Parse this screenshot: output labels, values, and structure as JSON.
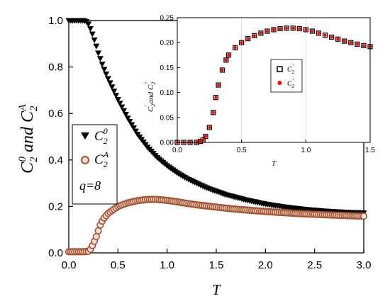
{
  "chart_data": [
    {
      "type": "scatter",
      "xlabel": "T",
      "ylabel": "C_2^0 and C_2^A",
      "xlim": [
        0,
        3.0
      ],
      "ylim": [
        0,
        1.0
      ],
      "xticks": [
        "0.0",
        "0.5",
        "1.0",
        "1.5",
        "2.0",
        "2.5",
        "3.0"
      ],
      "yticks": [
        "0.0",
        "0.2",
        "0.4",
        "0.6",
        "0.8",
        "1.0"
      ],
      "legend_position": "left",
      "annotation": "q=8",
      "series": [
        {
          "name": "C_2^0",
          "marker": "triangle-down",
          "color": "#000000",
          "x": [
            0.02,
            0.1,
            0.15,
            0.18,
            0.2,
            0.22,
            0.25,
            0.28,
            0.3,
            0.35,
            0.4,
            0.5,
            0.6,
            0.7,
            0.8,
            0.9,
            1.0,
            1.1,
            1.2,
            1.3,
            1.4,
            1.5,
            1.6,
            1.8,
            2.0,
            2.2,
            2.4,
            2.6,
            2.8,
            3.0
          ],
          "y": [
            1.0,
            1.0,
            1.0,
            0.995,
            0.985,
            0.965,
            0.93,
            0.89,
            0.86,
            0.8,
            0.75,
            0.66,
            0.58,
            0.51,
            0.455,
            0.41,
            0.375,
            0.345,
            0.32,
            0.3,
            0.28,
            0.265,
            0.25,
            0.228,
            0.21,
            0.197,
            0.187,
            0.18,
            0.175,
            0.172
          ]
        },
        {
          "name": "C_2^A",
          "marker": "circle-open",
          "color": "#a0522d",
          "fill": "#ff2020",
          "x": [
            0.02,
            0.1,
            0.15,
            0.2,
            0.22,
            0.25,
            0.28,
            0.3,
            0.32,
            0.35,
            0.4,
            0.45,
            0.5,
            0.6,
            0.7,
            0.8,
            0.9,
            1.0,
            1.1,
            1.2,
            1.3,
            1.5,
            1.7,
            2.0,
            2.3,
            2.6,
            3.0
          ],
          "y": [
            0.005,
            0.005,
            0.005,
            0.007,
            0.015,
            0.04,
            0.07,
            0.095,
            0.12,
            0.145,
            0.17,
            0.185,
            0.2,
            0.215,
            0.225,
            0.23,
            0.23,
            0.226,
            0.22,
            0.213,
            0.207,
            0.197,
            0.188,
            0.178,
            0.17,
            0.164,
            0.158
          ]
        }
      ]
    },
    {
      "type": "scatter",
      "inset": true,
      "xlabel": "T",
      "ylabel": "C'_2 and C''_2",
      "xlim": [
        0,
        1.5
      ],
      "ylim": [
        0,
        0.25
      ],
      "xticks": [
        "0.0",
        "0.5",
        "1.0",
        "1.5"
      ],
      "yticks": [
        "0.00",
        "0.05",
        "0.10",
        "0.15",
        "0.20",
        "0.25"
      ],
      "legend_position": "right",
      "series": [
        {
          "name": "C'_2",
          "marker": "square-open",
          "color": "#000000",
          "x": [
            0.0,
            0.05,
            0.1,
            0.15,
            0.18,
            0.2,
            0.22,
            0.25,
            0.28,
            0.3,
            0.32,
            0.35,
            0.38,
            0.4,
            0.45,
            0.5,
            0.55,
            0.6,
            0.65,
            0.7,
            0.75,
            0.8,
            0.85,
            0.9,
            0.95,
            1.0,
            1.05,
            1.1,
            1.15,
            1.2,
            1.25,
            1.3,
            1.35,
            1.4,
            1.45,
            1.5
          ],
          "y": [
            0.0,
            0.0,
            0.0,
            0.0,
            0.002,
            0.005,
            0.012,
            0.03,
            0.06,
            0.09,
            0.115,
            0.145,
            0.165,
            0.175,
            0.19,
            0.2,
            0.208,
            0.214,
            0.219,
            0.223,
            0.226,
            0.228,
            0.229,
            0.229,
            0.228,
            0.226,
            0.223,
            0.219,
            0.215,
            0.211,
            0.207,
            0.203,
            0.2,
            0.197,
            0.194,
            0.192
          ]
        },
        {
          "name": "C''_2",
          "marker": "circle-filled",
          "color": "#ff0000",
          "x": [
            0.0,
            0.05,
            0.1,
            0.15,
            0.18,
            0.2,
            0.22,
            0.25,
            0.28,
            0.3,
            0.32,
            0.35,
            0.38,
            0.4,
            0.45,
            0.5,
            0.55,
            0.6,
            0.65,
            0.7,
            0.75,
            0.8,
            0.85,
            0.9,
            0.95,
            1.0,
            1.05,
            1.1,
            1.15,
            1.2,
            1.25,
            1.3,
            1.35,
            1.4,
            1.45,
            1.5
          ],
          "y": [
            0.0,
            0.0,
            0.0,
            0.0,
            0.002,
            0.005,
            0.012,
            0.03,
            0.06,
            0.09,
            0.115,
            0.145,
            0.165,
            0.175,
            0.19,
            0.2,
            0.208,
            0.214,
            0.219,
            0.223,
            0.226,
            0.228,
            0.229,
            0.229,
            0.228,
            0.226,
            0.223,
            0.219,
            0.215,
            0.211,
            0.207,
            0.203,
            0.2,
            0.197,
            0.194,
            0.192
          ]
        }
      ]
    }
  ]
}
